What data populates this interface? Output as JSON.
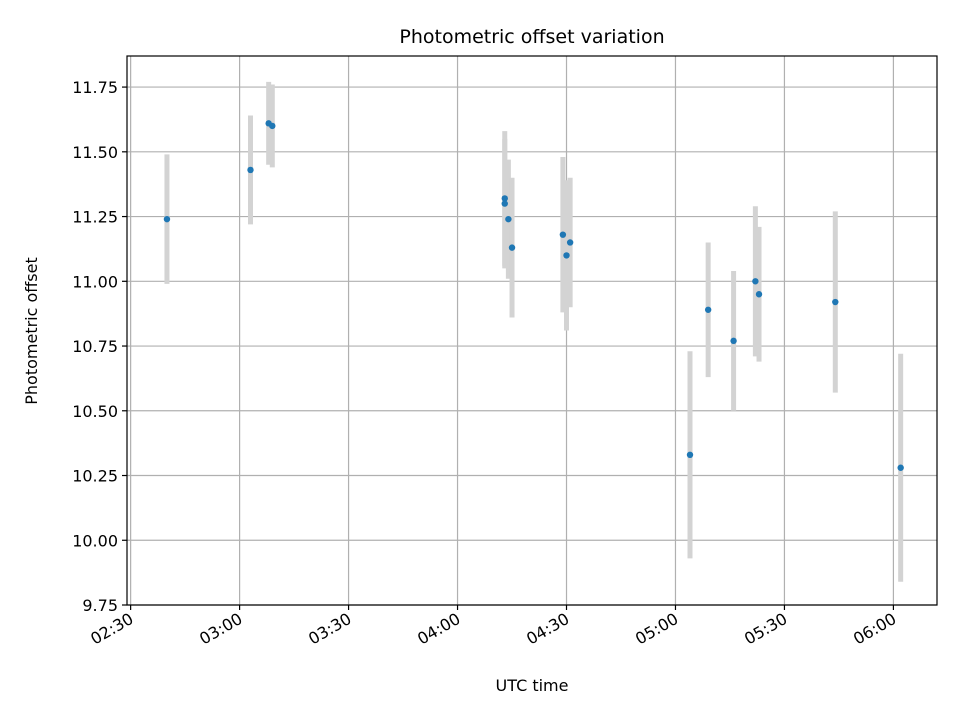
{
  "chart_data": {
    "type": "scatter",
    "title": "Photometric offset variation",
    "xlabel": "UTC time",
    "ylabel": "Photometric offset",
    "xlim": [
      "02:29",
      "06:12"
    ],
    "ylim": [
      9.75,
      11.87
    ],
    "grid": true,
    "x_ticks": [
      "02:30",
      "03:00",
      "03:30",
      "04:00",
      "04:30",
      "05:00",
      "05:30",
      "06:00"
    ],
    "y_ticks": [
      "9.75",
      "10.00",
      "10.25",
      "10.50",
      "10.75",
      "11.00",
      "11.25",
      "11.50",
      "11.75"
    ],
    "colors": {
      "points": "#1f77b4",
      "errorbars": "#d3d3d3",
      "grid": "#b0b0b0"
    },
    "series": [
      {
        "points": [
          {
            "t": "02:40",
            "y": 11.24,
            "err": 0.25
          },
          {
            "t": "03:03",
            "y": 11.43,
            "err": 0.21
          },
          {
            "t": "03:08",
            "y": 11.61,
            "err": 0.16
          },
          {
            "t": "03:09",
            "y": 11.6,
            "err": 0.16
          },
          {
            "t": "04:13",
            "y": 11.32,
            "err": 0.26
          },
          {
            "t": "04:13",
            "y": 11.3,
            "err": 0.25
          },
          {
            "t": "04:14",
            "y": 11.24,
            "err": 0.23
          },
          {
            "t": "04:15",
            "y": 11.13,
            "err": 0.27
          },
          {
            "t": "04:29",
            "y": 11.18,
            "err": 0.3
          },
          {
            "t": "04:30",
            "y": 11.1,
            "err": 0.29
          },
          {
            "t": "04:31",
            "y": 11.15,
            "err": 0.25
          },
          {
            "t": "05:04",
            "y": 10.33,
            "err": 0.4
          },
          {
            "t": "05:09",
            "y": 10.89,
            "err": 0.26
          },
          {
            "t": "05:16",
            "y": 10.77,
            "err": 0.27
          },
          {
            "t": "05:22",
            "y": 11.0,
            "err": 0.29
          },
          {
            "t": "05:23",
            "y": 10.95,
            "err": 0.26
          },
          {
            "t": "05:44",
            "y": 10.92,
            "err": 0.35
          },
          {
            "t": "06:02",
            "y": 10.28,
            "err": 0.44
          }
        ]
      }
    ]
  }
}
